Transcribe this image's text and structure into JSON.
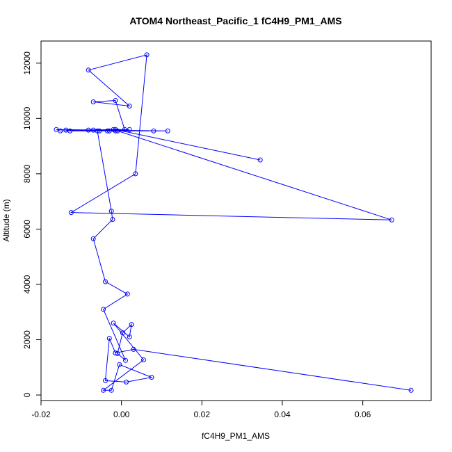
{
  "chart_data": {
    "type": "line",
    "title": "ATOM4 Northeast_Pacific_1 fC4H9_PM1_AMS",
    "xlabel": "fC4H9_PM1_AMS",
    "ylabel": "Altitude (m)",
    "xlim": [
      -0.02,
      0.077
    ],
    "ylim": [
      -200,
      12800
    ],
    "x_ticks": [
      -0.02,
      0.0,
      0.02,
      0.04,
      0.06
    ],
    "x_tick_labels": [
      "-0.02",
      "0.00",
      "0.02",
      "0.04",
      "0.06"
    ],
    "y_ticks": [
      0,
      2000,
      4000,
      6000,
      8000,
      10000,
      12000
    ],
    "y_tick_labels": [
      "0",
      "2000",
      "4000",
      "6000",
      "8000",
      "10000",
      "12000"
    ],
    "grid": false,
    "legend": "none",
    "series_color": "#0000ff",
    "markers": "open-circle",
    "series": [
      {
        "x": [
          0.072,
          0.003,
          -0.0015,
          -0.003,
          -0.004,
          0.0012,
          0.0075,
          -0.0005,
          -0.0025,
          -0.0045,
          0.0055,
          -0.002,
          0.002,
          0.0025,
          0.0003,
          -0.001,
          0.001,
          -0.0045,
          0.0015,
          -0.004,
          -0.007,
          -0.0022,
          -0.0025,
          -0.006,
          0.002,
          -0.0035,
          -0.0015,
          -0.003,
          -0.0082,
          -0.002,
          0.0672,
          -0.0125,
          0.0035,
          0.0063,
          -0.0082,
          0.002,
          -0.007,
          -0.0015,
          0.0008,
          -0.0138,
          -0.0055,
          0.0115,
          -0.0162,
          -0.0152,
          -0.007,
          0.008,
          -0.0128,
          -0.001,
          -0.0015,
          0.0345
        ],
        "y": [
          170,
          1650,
          1520,
          2050,
          520,
          470,
          640,
          1100,
          170,
          170,
          1270,
          2600,
          2100,
          2550,
          2250,
          1500,
          1250,
          3100,
          3650,
          4100,
          5650,
          6350,
          6650,
          9550,
          9600,
          9550,
          9550,
          9550,
          9580,
          9600,
          6330,
          6600,
          8000,
          12300,
          11750,
          10450,
          10600,
          10650,
          9600,
          9580,
          9550,
          9550,
          9600,
          9550,
          9580,
          9550,
          9550,
          9550,
          9600,
          8500
        ]
      }
    ]
  }
}
